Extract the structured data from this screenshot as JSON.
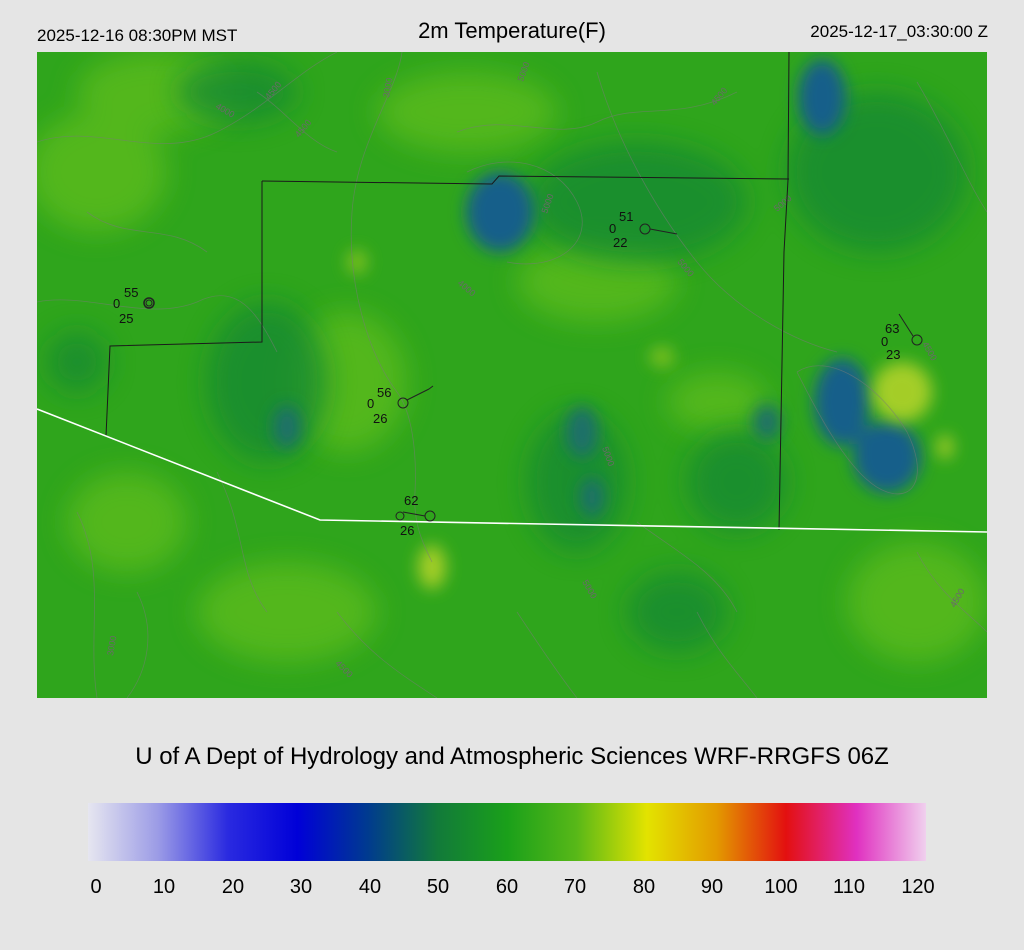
{
  "header": {
    "local_time": "2025-12-16 08:30PM MST",
    "title": "2m Temperature(F)",
    "utc_time": "2025-12-17_03:30:00 Z"
  },
  "credit": "U of A Dept of Hydrology and Atmospheric Sciences WRF-RRGFS 06Z",
  "colorbar": {
    "labels": [
      "0",
      "10",
      "20",
      "30",
      "40",
      "50",
      "60",
      "70",
      "80",
      "90",
      "100",
      "110",
      "120"
    ],
    "colors": [
      "#e6e6f0",
      "#9c9ce6",
      "#2a2ae0",
      "#0000d8",
      "#003a90",
      "#127a3a",
      "#1aa01a",
      "#58b818",
      "#e3e300",
      "#e39a00",
      "#e31010",
      "#e030c0",
      "#f0d0ee"
    ]
  },
  "stations": [
    {
      "temp": "55",
      "wind": "0",
      "dew": "25"
    },
    {
      "temp": "51",
      "wind": "0",
      "dew": "22"
    },
    {
      "temp": "56",
      "wind": "0",
      "dew": "26"
    },
    {
      "temp": "62",
      "wind": "0",
      "dew": "26"
    },
    {
      "temp": "63",
      "wind": "0",
      "dew": "23"
    }
  ],
  "contour_labels": [
    "4000",
    "4500",
    "3000",
    "5000",
    "4500",
    "5000",
    "4000",
    "5000",
    "4500",
    "5000",
    "4500",
    "5000",
    "3000",
    "4500",
    "5000",
    "4500"
  ],
  "map_colors": {
    "base": "#2fa51c",
    "light": "#5ebd1c",
    "dark": "#148a30",
    "cold": "#135f8a",
    "warm": "#b9d52a",
    "border": "#1a1a1a",
    "state_line": "#ffffff",
    "contour": "#7a7a7a"
  }
}
